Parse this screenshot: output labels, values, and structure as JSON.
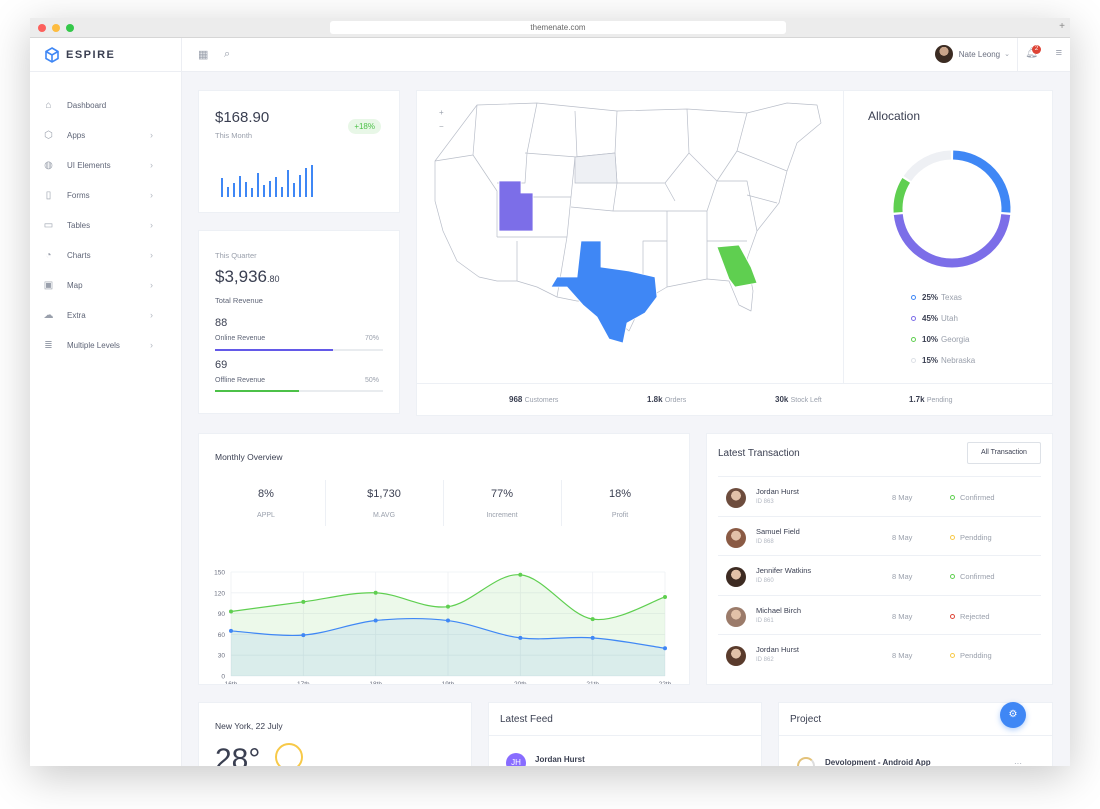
{
  "browser": {
    "url": "themenate.com"
  },
  "brand": {
    "name": "ESPIRE"
  },
  "sidebar": {
    "items": [
      {
        "label": "Dashboard",
        "icon": "home-icon",
        "chevron": false
      },
      {
        "label": "Apps",
        "icon": "cube-icon",
        "chevron": true
      },
      {
        "label": "UI Elements",
        "icon": "globe-icon",
        "chevron": true
      },
      {
        "label": "Forms",
        "icon": "file-icon",
        "chevron": true
      },
      {
        "label": "Tables",
        "icon": "table-icon",
        "chevron": true
      },
      {
        "label": "Charts",
        "icon": "pie-chart-icon",
        "chevron": true
      },
      {
        "label": "Map",
        "icon": "map-icon",
        "chevron": true
      },
      {
        "label": "Extra",
        "icon": "cloud-icon",
        "chevron": true
      },
      {
        "label": "Multiple Levels",
        "icon": "layers-icon",
        "chevron": true
      }
    ]
  },
  "topbar": {
    "user_name": "Nate Leong",
    "notification_count": "2"
  },
  "summary": {
    "amount": "$168.90",
    "subtitle": "This Month",
    "change": "+18%",
    "bars": [
      0.55,
      0.3,
      0.4,
      0.62,
      0.45,
      0.25,
      0.7,
      0.35,
      0.48,
      0.58,
      0.3,
      0.78,
      0.4,
      0.65,
      0.85,
      0.95
    ]
  },
  "quarter": {
    "period": "This Quarter",
    "amount": "$3,936",
    "cents": ".80",
    "label": "Total Revenue",
    "online": {
      "value": "88",
      "label": "Online Revenue",
      "pct": "70%",
      "fill": 0.7
    },
    "offline": {
      "value": "69",
      "label": "Offline Revenue",
      "pct": "50%",
      "fill": 0.5
    }
  },
  "map": {
    "states": [
      {
        "name": "Utah",
        "color": "#7c6ee8"
      },
      {
        "name": "Texas",
        "color": "#3f87f5"
      },
      {
        "name": "Georgia",
        "color": "#5fcf50"
      },
      {
        "name": "Nebraska",
        "color": "#eef0f4"
      }
    ],
    "stats": [
      {
        "value": "968",
        "label": "Customers"
      },
      {
        "value": "1.8k",
        "label": "Orders"
      },
      {
        "value": "30k",
        "label": "Stock Left"
      },
      {
        "value": "1.7k",
        "label": "Pending"
      }
    ]
  },
  "allocation": {
    "title": "Allocation",
    "items": [
      {
        "pct": "25%",
        "name": "Texas",
        "value": 25,
        "color": "#3f87f5"
      },
      {
        "pct": "45%",
        "name": "Utah",
        "value": 45,
        "color": "#7c6ee8"
      },
      {
        "pct": "10%",
        "name": "Georgia",
        "value": 10,
        "color": "#5fcf50"
      },
      {
        "pct": "15%",
        "name": "Nebraska",
        "value": 15,
        "color": "#eef0f4"
      }
    ]
  },
  "monthly": {
    "title": "Monthly Overview",
    "kpis": [
      {
        "value": "8%",
        "label": "APPL"
      },
      {
        "value": "$1,730",
        "label": "M.AVG"
      },
      {
        "value": "77%",
        "label": "Increment"
      },
      {
        "value": "18%",
        "label": "Profit"
      }
    ]
  },
  "chart_data": {
    "type": "area",
    "categories": [
      "16th",
      "17th",
      "18th",
      "19th",
      "20th",
      "21th",
      "22th"
    ],
    "series": [
      {
        "values": [
          93,
          107,
          120,
          100,
          146,
          82,
          114
        ],
        "color": "#5fcf50"
      },
      {
        "values": [
          65,
          59,
          80,
          80,
          55,
          55,
          40
        ],
        "color": "#3f87f5"
      }
    ],
    "yticks": [
      0,
      30,
      60,
      90,
      120,
      150
    ],
    "ylim": [
      0,
      150
    ],
    "grid": true
  },
  "transactions": {
    "title": "Latest Transaction",
    "button": "All Transaction",
    "rows": [
      {
        "name": "Jordan Hurst",
        "id": "ID 863",
        "date": "8 May",
        "status": "Confirmed",
        "color": "#5fcf50"
      },
      {
        "name": "Samuel Field",
        "id": "ID 868",
        "date": "8 May",
        "status": "Pendding",
        "color": "#f7c948"
      },
      {
        "name": "Jennifer Watkins",
        "id": "ID 860",
        "date": "8 May",
        "status": "Confirmed",
        "color": "#5fcf50"
      },
      {
        "name": "Michael Birch",
        "id": "ID 861",
        "date": "8 May",
        "status": "Rejected",
        "color": "#de4436"
      },
      {
        "name": "Jordan Hurst",
        "id": "ID 862",
        "date": "8 May",
        "status": "Pendding",
        "color": "#f7c948"
      }
    ]
  },
  "weather": {
    "location": "New York, 22 July",
    "temp": "28°"
  },
  "feed": {
    "title": "Latest Feed",
    "initials": "JH",
    "name": "Jordan Hurst"
  },
  "project": {
    "title": "Project",
    "item": "Devolopment - Android App",
    "more": "···"
  }
}
